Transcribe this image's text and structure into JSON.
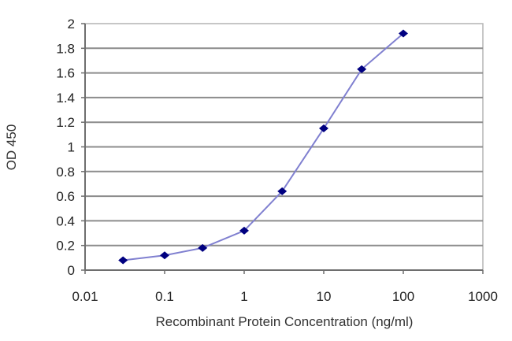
{
  "chart_data": {
    "type": "line",
    "title": "",
    "xlabel": "Recombinant Protein Concentration (ng/ml)",
    "ylabel": "OD 450",
    "xscale": "log",
    "xlim": [
      0.01,
      1000
    ],
    "ylim": [
      0,
      2
    ],
    "x_ticks": [
      0.01,
      0.1,
      1,
      10,
      100,
      1000
    ],
    "x_tick_labels": [
      "0.01",
      "0.1",
      "1",
      "10",
      "100",
      "1000"
    ],
    "y_ticks": [
      0,
      0.2,
      0.4,
      0.6,
      0.8,
      1,
      1.2,
      1.4,
      1.6,
      1.8,
      2
    ],
    "y_tick_labels": [
      "0",
      "0.2",
      "0.4",
      "0.6",
      "0.8",
      "1",
      "1.2",
      "1.4",
      "1.6",
      "1.8",
      "2"
    ],
    "grid": "horizontal",
    "legend": "none",
    "series": [
      {
        "name": "OD 450",
        "x": [
          0.03,
          0.1,
          0.3,
          1,
          3,
          10,
          30,
          100
        ],
        "values": [
          0.08,
          0.12,
          0.18,
          0.32,
          0.64,
          1.15,
          1.63,
          1.92
        ],
        "line_color": "#8080d0",
        "marker_color": "#000080",
        "marker": "diamond"
      }
    ]
  },
  "colors": {
    "background": "#ffffff",
    "gridline": "#8c8c8c",
    "axis": "#6e6e6e",
    "line": "#8080d0",
    "marker": "#000080"
  }
}
